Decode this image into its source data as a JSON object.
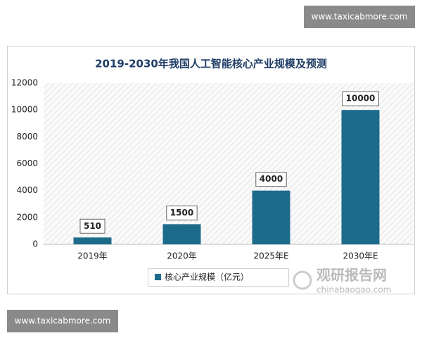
{
  "chart_data": {
    "type": "bar",
    "title": "2019-2030年我国人工智能核心产业规模及预测",
    "categories": [
      "2019年",
      "2020年",
      "2025年E",
      "2030年E"
    ],
    "series": [
      {
        "name": "核心产业规模（亿元）",
        "color": "#1c6b8a",
        "values": [
          510,
          1500,
          4000,
          10000
        ]
      }
    ],
    "ylim": [
      0,
      12000
    ],
    "yticks": [
      0,
      2000,
      4000,
      6000,
      8000,
      10000,
      12000
    ],
    "grid": false,
    "legend": "bottom"
  },
  "watermarks": [
    "www.taxicabmore.com",
    "www.taxicabmore.com"
  ],
  "logo": {
    "name": "观研报告网",
    "url": "chinabaogao.com"
  }
}
